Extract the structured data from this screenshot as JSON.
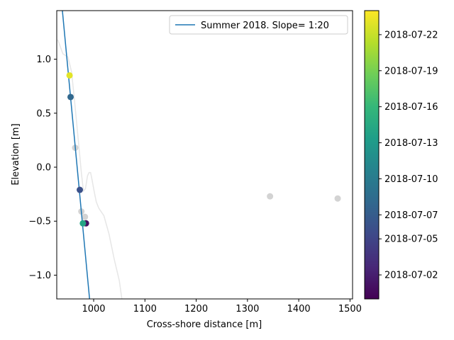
{
  "chart_data": {
    "type": "scatter",
    "xlabel": "Cross-shore distance [m]",
    "ylabel": "Elevation [m]",
    "xlim": [
      928,
      1505
    ],
    "ylim": [
      -1.22,
      1.45
    ],
    "x_ticks": [
      1000,
      1100,
      1200,
      1300,
      1400,
      1500
    ],
    "y_ticks": [
      -1.0,
      -0.5,
      0.0,
      0.5,
      1.0
    ],
    "x_tick_labels": [
      "1000",
      "1100",
      "1200",
      "1300",
      "1400",
      "1500"
    ],
    "y_tick_labels": [
      "−1.0",
      "−0.5",
      "0.0",
      "0.5",
      "1.0"
    ],
    "grid": false,
    "legend": {
      "placement": "upper-right",
      "entries": [
        {
          "label": "Summer 2018. Slope= 1:20",
          "color": "#1f77b4"
        }
      ]
    },
    "fit_line": {
      "name": "Summer 2018. Slope= 1:20",
      "color": "#1f77b4",
      "x": [
        939,
        992
      ],
      "y": [
        1.45,
        -1.22
      ]
    },
    "profile_line": {
      "color": "#e6e6e6",
      "x": [
        930,
        940,
        950,
        957,
        963,
        968,
        972,
        976,
        980,
        984,
        988,
        991,
        994,
        997,
        1000,
        1005,
        1010,
        1020,
        1030,
        1040,
        1050,
        1055
      ],
      "y": [
        1.18,
        1.05,
        1.02,
        0.88,
        0.6,
        0.35,
        0.15,
        -0.05,
        -0.22,
        -0.2,
        -0.08,
        -0.05,
        -0.05,
        -0.12,
        -0.2,
        -0.32,
        -0.38,
        -0.45,
        -0.62,
        -0.85,
        -1.05,
        -1.22
      ]
    },
    "gray_points": {
      "color": "#d3d3d3",
      "points": [
        {
          "x": 964,
          "y": 0.18
        },
        {
          "x": 976,
          "y": -0.41
        },
        {
          "x": 983,
          "y": -0.46
        },
        {
          "x": 1344,
          "y": -0.27
        },
        {
          "x": 1476,
          "y": -0.29
        }
      ]
    },
    "colored_points": [
      {
        "x": 955,
        "y": 0.65,
        "date": "2018-07-08"
      },
      {
        "x": 973,
        "y": -0.21,
        "date": "2018-07-06"
      },
      {
        "x": 985,
        "y": -0.52,
        "date": "2018-07-01"
      },
      {
        "x": 979,
        "y": -0.52,
        "date": "2018-07-14"
      },
      {
        "x": 953,
        "y": 0.85,
        "date": "2018-07-23"
      }
    ],
    "colorbar": {
      "date_min": "2018-06-30",
      "date_max": "2018-07-24",
      "tick_labels": [
        "2018-07-02",
        "2018-07-05",
        "2018-07-07",
        "2018-07-10",
        "2018-07-13",
        "2018-07-16",
        "2018-07-19",
        "2018-07-22"
      ],
      "colormap": "viridis",
      "colormap_stops": [
        "#440154",
        "#482878",
        "#3e4989",
        "#31688e",
        "#26828e",
        "#1f9e89",
        "#35b779",
        "#6ece58",
        "#b5de2b",
        "#fde725"
      ]
    }
  }
}
